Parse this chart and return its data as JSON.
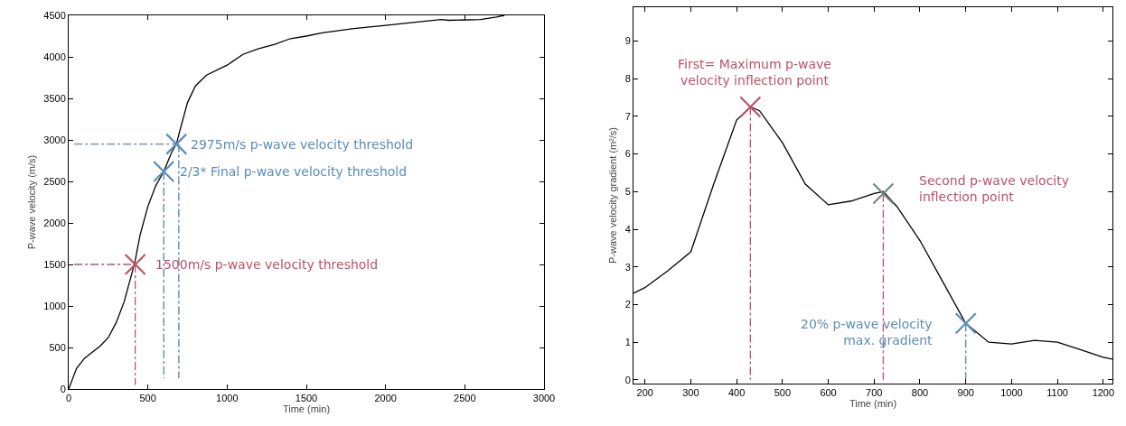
{
  "chart_data": [
    {
      "type": "line",
      "xlabel": "Time (min)",
      "ylabel": "P-wave velocity (m/s)",
      "xlim": [
        0,
        3000
      ],
      "ylim": [
        0,
        4500
      ],
      "xticks": [
        0,
        500,
        1000,
        1500,
        2000,
        2500,
        3000
      ],
      "yticks": [
        0,
        500,
        1000,
        1500,
        2000,
        2500,
        3000,
        3500,
        4000,
        4500
      ],
      "grid": false,
      "series": [
        {
          "color": "#000000",
          "line_style": "solid",
          "x": [
            0,
            50,
            100,
            200,
            250,
            300,
            350,
            400,
            420,
            450,
            500,
            550,
            600,
            650,
            680,
            700,
            750,
            800,
            870,
            1000,
            1100,
            1200,
            1300,
            1400,
            1500,
            1600,
            1800,
            2000,
            2200,
            2350,
            2400,
            2600,
            2700,
            2750
          ],
          "values": [
            0,
            250,
            370,
            520,
            620,
            800,
            1050,
            1400,
            1550,
            1850,
            2200,
            2450,
            2620,
            2850,
            2950,
            3100,
            3450,
            3650,
            3780,
            3900,
            4030,
            4100,
            4150,
            4220,
            4250,
            4290,
            4340,
            4380,
            4420,
            4450,
            4440,
            4450,
            4480,
            4500
          ]
        },
        {
          "type": "line",
          "color": "#c0506a",
          "line_style": "dashed",
          "x": [
            35,
            420
          ],
          "values": [
            1500,
            1500
          ]
        },
        {
          "type": "line",
          "color": "#c0506a",
          "line_style": "dashed",
          "x": [
            420,
            420
          ],
          "values": [
            1500,
            50
          ]
        },
        {
          "type": "line",
          "color": "#6a7ec0",
          "line_style": "dashed",
          "x": [
            35,
            680
          ],
          "values": [
            2950,
            2950
          ]
        },
        {
          "type": "line",
          "color": "#4f86b0",
          "line_style": "dashed",
          "x": [
            600,
            600
          ],
          "values": [
            2620,
            130
          ]
        },
        {
          "type": "line",
          "color": "#4f86b0",
          "line_style": "dashed",
          "x": [
            695,
            695
          ],
          "values": [
            2950,
            130
          ]
        },
        {
          "type": "scatter",
          "color": "#c0506a",
          "marker": "cross",
          "x": [
            420
          ],
          "values": [
            1500
          ]
        },
        {
          "type": "scatter",
          "color": "#5b8db8",
          "marker": "cross",
          "x": [
            600,
            680
          ],
          "values": [
            2620,
            2950
          ]
        }
      ],
      "annotations": [
        {
          "text": "2975m/s p-wave velocity threshold",
          "x": 680,
          "y": 2950
        },
        {
          "text": "2/3* Final p-wave velocity threshold",
          "x": 600,
          "y": 2620
        },
        {
          "text": "1500m/s p-wave velocity threshold",
          "x": 420,
          "y": 1500
        }
      ]
    },
    {
      "type": "line",
      "xlabel": "Time (min)",
      "ylabel": "P-wave velocity gradient (m²/s)",
      "xlim": [
        175,
        1220
      ],
      "ylim": [
        -0.1,
        9.9
      ],
      "xticks": [
        200,
        300,
        400,
        500,
        600,
        700,
        800,
        900,
        1000,
        1100,
        1200
      ],
      "yticks": [
        0,
        1,
        2,
        3,
        4,
        5,
        6,
        7,
        8,
        9
      ],
      "grid": false,
      "series": [
        {
          "color": "#000000",
          "line_style": "solid",
          "x": [
            175,
            200,
            250,
            300,
            350,
            400,
            430,
            450,
            500,
            550,
            600,
            650,
            700,
            720,
            750,
            800,
            850,
            900,
            950,
            1000,
            1050,
            1100,
            1150,
            1200,
            1220
          ],
          "values": [
            2.3,
            2.45,
            2.9,
            3.4,
            5.2,
            6.9,
            7.25,
            7.15,
            6.3,
            5.2,
            4.65,
            4.75,
            4.95,
            5.0,
            4.6,
            3.7,
            2.6,
            1.5,
            1.0,
            0.95,
            1.05,
            1.0,
            0.8,
            0.6,
            0.55
          ]
        },
        {
          "type": "line",
          "color": "#c0506a",
          "line_style": "dashed",
          "x": [
            430,
            430
          ],
          "values": [
            7.25,
            0
          ]
        },
        {
          "type": "line",
          "color": "#c0506a",
          "line_style": "dashed",
          "x": [
            720,
            720
          ],
          "values": [
            4.95,
            0
          ]
        },
        {
          "type": "line",
          "color": "#4f86b0",
          "line_style": "dashed",
          "x": [
            900,
            900
          ],
          "values": [
            1.5,
            0
          ]
        },
        {
          "type": "scatter",
          "color": "#c0506a",
          "marker": "cross",
          "x": [
            430
          ],
          "values": [
            7.25
          ]
        },
        {
          "type": "scatter",
          "color": "#6f8a7c",
          "marker": "cross",
          "x": [
            720
          ],
          "values": [
            4.95
          ]
        },
        {
          "type": "scatter",
          "color": "#5b8db8",
          "marker": "cross",
          "x": [
            900
          ],
          "values": [
            1.5
          ]
        }
      ],
      "annotations": [
        {
          "text": "First= Maximum p-wave\nvelocity inflection point",
          "x": 430,
          "y": 7.25
        },
        {
          "text": "Second p-wave velocity\ninflection point",
          "x": 720,
          "y": 4.95
        },
        {
          "text": "20% p-wave velocity\nmax. gradient",
          "x": 900,
          "y": 1.5
        }
      ]
    }
  ]
}
